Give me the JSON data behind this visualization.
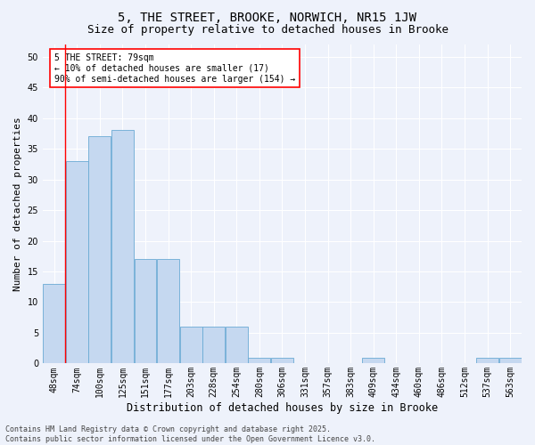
{
  "title1": "5, THE STREET, BROOKE, NORWICH, NR15 1JW",
  "title2": "Size of property relative to detached houses in Brooke",
  "xlabel": "Distribution of detached houses by size in Brooke",
  "ylabel": "Number of detached properties",
  "categories": [
    "48sqm",
    "74sqm",
    "100sqm",
    "125sqm",
    "151sqm",
    "177sqm",
    "203sqm",
    "228sqm",
    "254sqm",
    "280sqm",
    "306sqm",
    "331sqm",
    "357sqm",
    "383sqm",
    "409sqm",
    "434sqm",
    "460sqm",
    "486sqm",
    "512sqm",
    "537sqm",
    "563sqm"
  ],
  "values": [
    13,
    33,
    37,
    38,
    17,
    17,
    6,
    6,
    6,
    1,
    1,
    0,
    0,
    0,
    1,
    0,
    0,
    0,
    0,
    1,
    1
  ],
  "bar_color": "#c5d8f0",
  "bar_edge_color": "#6aaad4",
  "red_line_x": 1.0,
  "annotation_text": "5 THE STREET: 79sqm\n← 10% of detached houses are smaller (17)\n90% of semi-detached houses are larger (154) →",
  "annotation_box_color": "white",
  "annotation_box_edge_color": "red",
  "ylim": [
    0,
    52
  ],
  "yticks": [
    0,
    5,
    10,
    15,
    20,
    25,
    30,
    35,
    40,
    45,
    50
  ],
  "background_color": "#eef2fb",
  "plot_background_color": "#eef2fb",
  "grid_color": "white",
  "footer_line1": "Contains HM Land Registry data © Crown copyright and database right 2025.",
  "footer_line2": "Contains public sector information licensed under the Open Government Licence v3.0.",
  "title1_fontsize": 10,
  "title2_fontsize": 9,
  "annotation_fontsize": 7,
  "tick_fontsize": 7,
  "xlabel_fontsize": 8.5,
  "ylabel_fontsize": 8,
  "footer_fontsize": 6
}
